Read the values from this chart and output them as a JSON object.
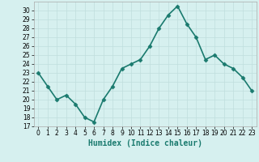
{
  "x": [
    0,
    1,
    2,
    3,
    4,
    5,
    6,
    7,
    8,
    9,
    10,
    11,
    12,
    13,
    14,
    15,
    16,
    17,
    18,
    19,
    20,
    21,
    22,
    23
  ],
  "y": [
    23,
    21.5,
    20,
    20.5,
    19.5,
    18,
    17.5,
    20,
    21.5,
    23.5,
    24,
    24.5,
    26,
    28,
    29.5,
    30.5,
    28.5,
    27,
    24.5,
    25,
    24,
    23.5,
    22.5,
    21
  ],
  "line_color": "#1a7a6e",
  "marker": "D",
  "marker_size": 2.5,
  "background_color": "#d6f0ef",
  "grid_color": "#c0dedd",
  "xlabel": "Humidex (Indice chaleur)",
  "xlim": [
    -0.5,
    23.5
  ],
  "ylim": [
    17,
    31
  ],
  "yticks": [
    17,
    18,
    19,
    20,
    21,
    22,
    23,
    24,
    25,
    26,
    27,
    28,
    29,
    30
  ],
  "xticks": [
    0,
    1,
    2,
    3,
    4,
    5,
    6,
    7,
    8,
    9,
    10,
    11,
    12,
    13,
    14,
    15,
    16,
    17,
    18,
    19,
    20,
    21,
    22,
    23
  ],
  "xtick_labels": [
    "0",
    "1",
    "2",
    "3",
    "4",
    "5",
    "6",
    "7",
    "8",
    "9",
    "10",
    "11",
    "12",
    "13",
    "14",
    "15",
    "16",
    "17",
    "18",
    "19",
    "20",
    "21",
    "22",
    "23"
  ],
  "tick_fontsize": 5.5,
  "xlabel_fontsize": 7,
  "line_width": 1.2
}
